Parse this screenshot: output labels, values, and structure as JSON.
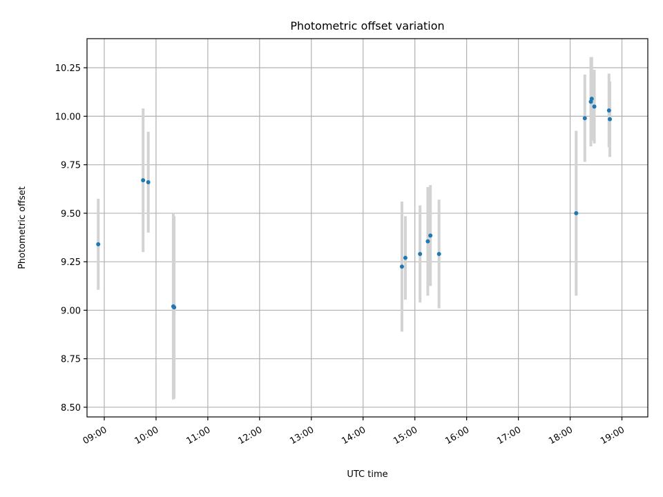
{
  "chart_data": {
    "type": "scatter",
    "title": "Photometric offset variation",
    "xlabel": "UTC time",
    "ylabel": "Photometric offset",
    "x_ticks": [
      "09:00",
      "10:00",
      "11:00",
      "12:00",
      "13:00",
      "14:00",
      "15:00",
      "16:00",
      "17:00",
      "18:00",
      "19:00"
    ],
    "y_ticks": [
      "8.50",
      "8.75",
      "9.00",
      "9.25",
      "9.50",
      "9.75",
      "10.00",
      "10.25"
    ],
    "xlim": [
      "08:40",
      "19:30"
    ],
    "ylim": [
      8.45,
      10.4
    ],
    "grid": true,
    "legend": "none",
    "colors": {
      "point": "#1f77b4",
      "errorbar": "#d3d3d3",
      "grid": "#b0b0b0"
    },
    "points": [
      {
        "time": "08:53",
        "y": 9.34,
        "err": 0.235
      },
      {
        "time": "09:45",
        "y": 9.67,
        "err": 0.37
      },
      {
        "time": "09:51",
        "y": 9.66,
        "err": 0.26
      },
      {
        "time": "10:20",
        "y": 9.02,
        "err": 0.48
      },
      {
        "time": "10:21",
        "y": 9.015,
        "err": 0.47
      },
      {
        "time": "14:45",
        "y": 9.225,
        "err": 0.335
      },
      {
        "time": "14:49",
        "y": 9.27,
        "err": 0.215
      },
      {
        "time": "15:06",
        "y": 9.29,
        "err": 0.25
      },
      {
        "time": "15:15",
        "y": 9.355,
        "err": 0.28
      },
      {
        "time": "15:18",
        "y": 9.385,
        "err": 0.26
      },
      {
        "time": "15:28",
        "y": 9.29,
        "err": 0.28
      },
      {
        "time": "18:07",
        "y": 9.5,
        "err": 0.425
      },
      {
        "time": "18:17",
        "y": 9.99,
        "err": 0.225
      },
      {
        "time": "18:24",
        "y": 10.075,
        "err": 0.23
      },
      {
        "time": "18:25",
        "y": 10.09,
        "err": 0.215
      },
      {
        "time": "18:28",
        "y": 10.05,
        "err": 0.19
      },
      {
        "time": "18:45",
        "y": 10.03,
        "err": 0.19
      },
      {
        "time": "18:46",
        "y": 9.985,
        "err": 0.195
      }
    ]
  }
}
